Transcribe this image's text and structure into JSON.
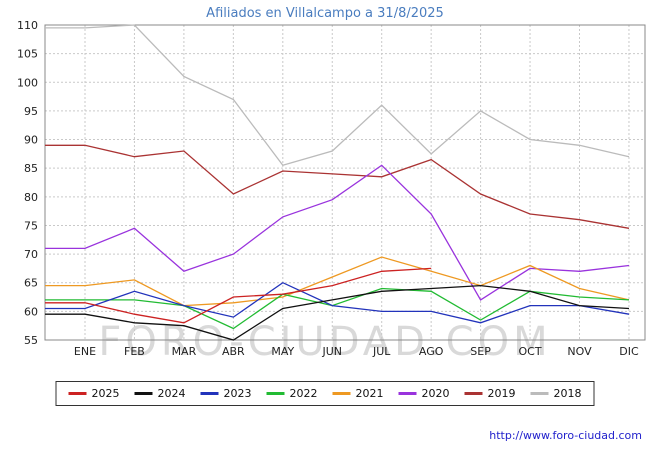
{
  "header": {
    "title": "Afiliados en Villalcampo a 31/8/2025"
  },
  "watermark": "FORO-CIUDAD.COM",
  "footer": {
    "link": "http://www.foro-ciudad.com"
  },
  "chart_data": {
    "type": "line",
    "title": "Afiliados en Villalcampo a 31/8/2025",
    "categories": [
      "ENE",
      "FEB",
      "MAR",
      "ABR",
      "MAY",
      "JUN",
      "JUL",
      "AGO",
      "SEP",
      "OCT",
      "NOV",
      "DIC"
    ],
    "ylim": [
      55,
      110
    ],
    "ytick_step": 5,
    "grid": true,
    "legend_position": "bottom",
    "series": [
      {
        "name": "2025",
        "color": "#cc2222",
        "values": [
          61.5,
          59.5,
          58,
          62.5,
          63,
          64.5,
          67,
          67.5,
          null,
          null,
          null,
          null
        ]
      },
      {
        "name": "2024",
        "color": "#111111",
        "values": [
          59.5,
          58,
          57.5,
          55,
          60.5,
          62,
          63.5,
          64,
          64.5,
          63.5,
          61,
          60.5
        ]
      },
      {
        "name": "2023",
        "color": "#2233bb",
        "values": [
          60.5,
          63.5,
          61,
          59,
          65,
          61,
          60,
          60,
          58,
          61,
          61,
          59.5
        ]
      },
      {
        "name": "2022",
        "color": "#22bb33",
        "values": [
          62,
          62,
          61,
          57,
          63,
          61,
          64,
          63.5,
          58.5,
          63.5,
          62.5,
          62
        ]
      },
      {
        "name": "2021",
        "color": "#ee9922",
        "values": [
          64.5,
          65.5,
          61,
          61.5,
          62.5,
          66,
          69.5,
          67,
          64.5,
          68,
          64,
          62
        ]
      },
      {
        "name": "2020",
        "color": "#9933dd",
        "values": [
          71,
          74.5,
          67,
          70,
          76.5,
          79.5,
          85.5,
          77,
          62,
          67.5,
          67,
          68
        ]
      },
      {
        "name": "2019",
        "color": "#aa3333",
        "values": [
          89,
          87,
          88,
          80.5,
          84.5,
          84,
          83.5,
          86.5,
          80.5,
          77,
          76,
          74.5
        ]
      },
      {
        "name": "2018",
        "color": "#bbbbbb",
        "values": [
          109.5,
          110,
          101,
          97,
          85.5,
          88,
          96,
          87.5,
          95,
          90,
          89,
          87
        ]
      }
    ]
  }
}
